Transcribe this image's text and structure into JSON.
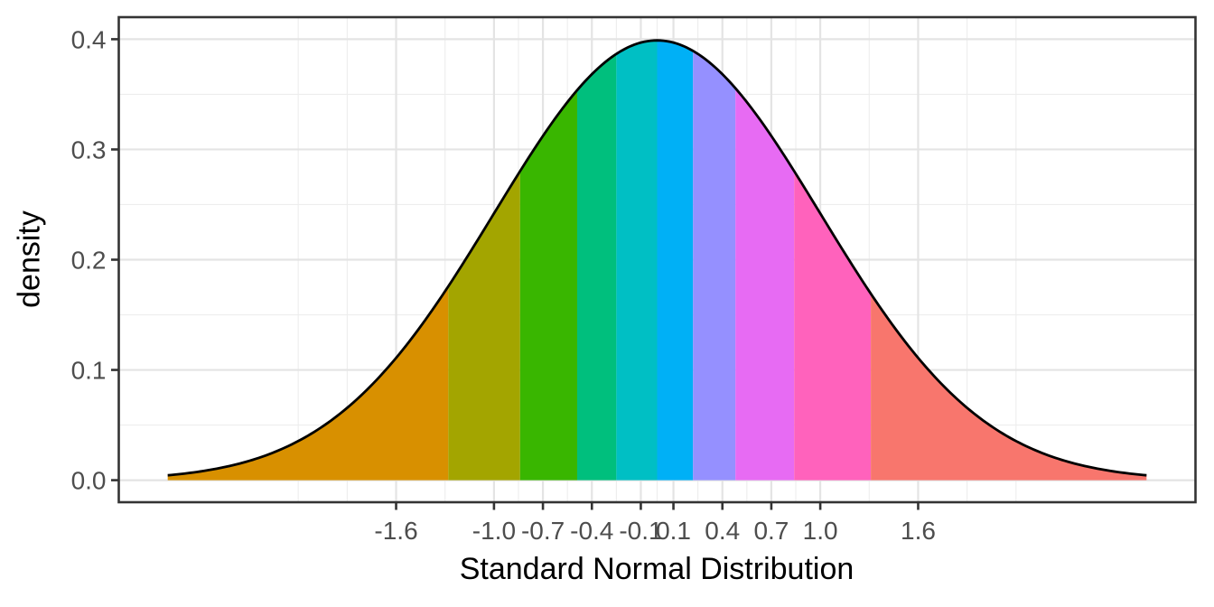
{
  "chart_data": {
    "type": "area",
    "title": "",
    "xlabel": "Standard Normal Distribution",
    "ylabel": "density",
    "distribution": "standard normal pdf f(x) = exp(-x^2/2)/sqrt(2*pi)",
    "peak_density": 0.3989,
    "x_data_range": [
      -3.0,
      3.0
    ],
    "xlim": [
      -3.3,
      3.3
    ],
    "ylim": [
      -0.02,
      0.42
    ],
    "grid": "on",
    "legend": "none",
    "x_ticks": [
      {
        "v": -1.6,
        "label": "-1.6"
      },
      {
        "v": -1.0,
        "label": "-1.0"
      },
      {
        "v": -0.7,
        "label": "-0.7"
      },
      {
        "v": -0.4,
        "label": "-0.4"
      },
      {
        "v": -0.1,
        "label": "-0.1"
      },
      {
        "v": 0.1,
        "label": "0.1"
      },
      {
        "v": 0.4,
        "label": "0.4"
      },
      {
        "v": 0.7,
        "label": "0.7"
      },
      {
        "v": 1.0,
        "label": "1.0"
      },
      {
        "v": 1.6,
        "label": "1.6"
      }
    ],
    "x_minor_gridlines": [
      -2.2,
      -1.9,
      -1.3,
      -0.85,
      -0.55,
      -0.25,
      0.0,
      0.25,
      0.55,
      0.85,
      1.3,
      1.9,
      2.2
    ],
    "y_ticks": [
      {
        "v": 0.0,
        "label": "0.0"
      },
      {
        "v": 0.1,
        "label": "0.1"
      },
      {
        "v": 0.2,
        "label": "0.2"
      },
      {
        "v": 0.3,
        "label": "0.3"
      },
      {
        "v": 0.4,
        "label": "0.4"
      }
    ],
    "y_minor_gridlines": [
      0.05,
      0.15,
      0.25,
      0.35
    ],
    "bands": [
      {
        "decile": 1,
        "from": -3.0,
        "to": -1.28,
        "color": "#D89000"
      },
      {
        "decile": 2,
        "from": -1.28,
        "to": -0.84,
        "color": "#A3A500"
      },
      {
        "decile": 3,
        "from": -0.84,
        "to": -0.49,
        "color": "#39B600"
      },
      {
        "decile": 4,
        "from": -0.49,
        "to": -0.25,
        "color": "#00BF7D"
      },
      {
        "decile": 5,
        "from": -0.25,
        "to": 0.0,
        "color": "#00BFC4"
      },
      {
        "decile": 6,
        "from": 0.0,
        "to": 0.22,
        "color": "#00B0F6"
      },
      {
        "decile": 7,
        "from": 0.22,
        "to": 0.48,
        "color": "#9590FF"
      },
      {
        "decile": 8,
        "from": 0.48,
        "to": 0.84,
        "color": "#E76BF3"
      },
      {
        "decile": 9,
        "from": 0.84,
        "to": 1.31,
        "color": "#FF62BC"
      },
      {
        "decile": 10,
        "from": 1.31,
        "to": 3.0,
        "color": "#F8766D"
      }
    ],
    "curve_color": "#000000",
    "colors": {
      "background": "#FFFFFF",
      "panel_background": "#FFFFFF",
      "panel_border": "#343434",
      "grid_major": "#E4E4E4",
      "grid_minor": "#EDEDED",
      "tick_mark": "#333333",
      "tick_label": "#4D4D4D",
      "title_text": "#000000"
    }
  }
}
